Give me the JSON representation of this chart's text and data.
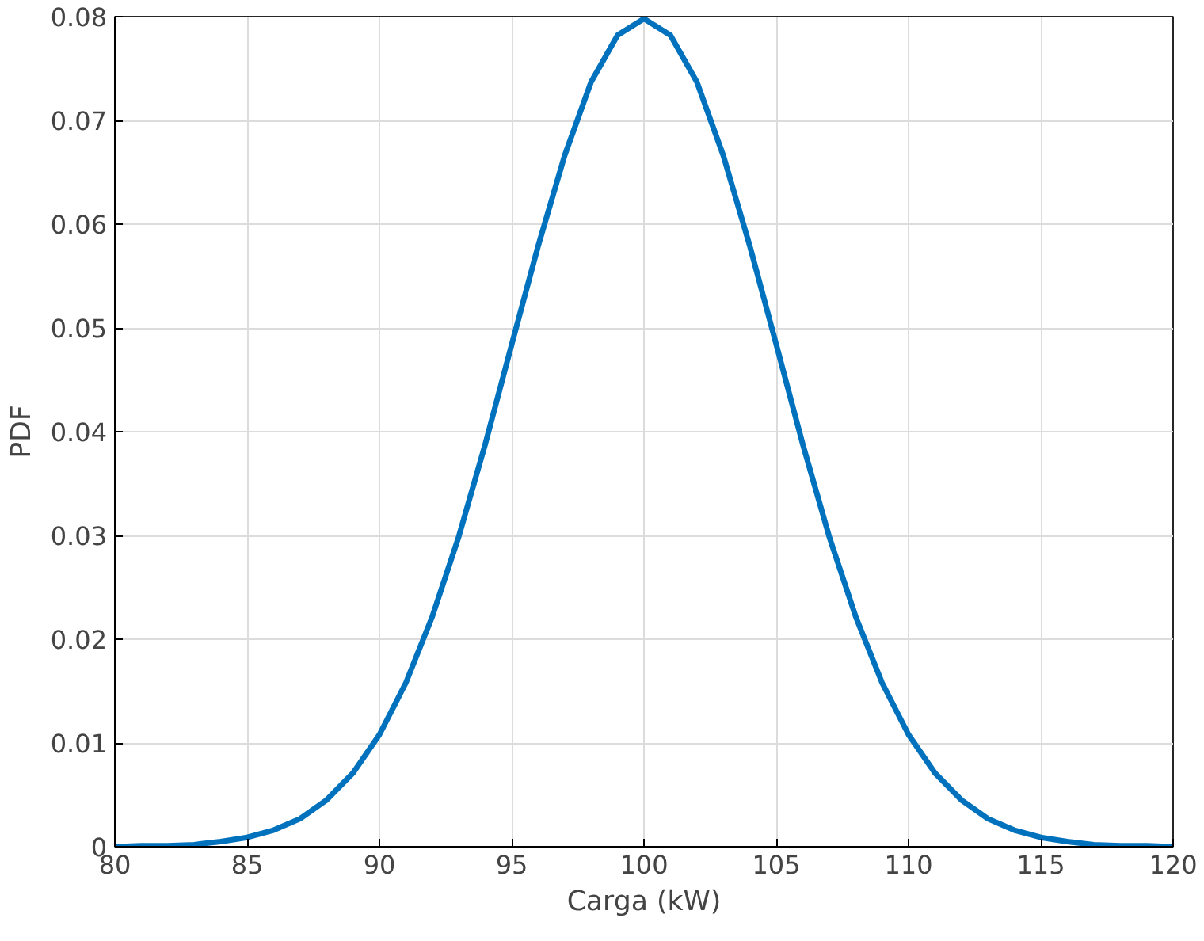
{
  "chart_data": {
    "type": "line",
    "xlabel": "Carga (kW)",
    "ylabel": "PDF",
    "x": [
      80,
      81,
      82,
      83,
      84,
      85,
      86,
      87,
      88,
      89,
      90,
      91,
      92,
      93,
      94,
      95,
      96,
      97,
      98,
      99,
      100,
      101,
      102,
      103,
      104,
      105,
      106,
      107,
      108,
      109,
      110,
      111,
      112,
      113,
      114,
      115,
      116,
      117,
      118,
      119,
      120
    ],
    "series": [
      {
        "color": "#0072bd",
        "values": [
          0.0,
          0.0001,
          0.0001,
          0.0002,
          0.0005,
          0.0009,
          0.0016,
          0.0027,
          0.0045,
          0.0071,
          0.0108,
          0.0158,
          0.0222,
          0.0299,
          0.0388,
          0.0484,
          0.0579,
          0.0666,
          0.0737,
          0.0782,
          0.0798,
          0.0782,
          0.0737,
          0.0666,
          0.0579,
          0.0484,
          0.0388,
          0.0299,
          0.0222,
          0.0158,
          0.0108,
          0.0071,
          0.0045,
          0.0027,
          0.0016,
          0.0009,
          0.0005,
          0.0002,
          0.0001,
          0.0001,
          0.0
        ]
      }
    ],
    "xlim": [
      80,
      120
    ],
    "ylim": [
      0,
      0.08
    ],
    "xticks": [
      80,
      85,
      90,
      95,
      100,
      105,
      110,
      115,
      120
    ],
    "yticks": [
      0,
      0.01,
      0.02,
      0.03,
      0.04,
      0.05,
      0.06,
      0.07,
      0.08
    ],
    "grid": true,
    "line_style": "solid"
  }
}
